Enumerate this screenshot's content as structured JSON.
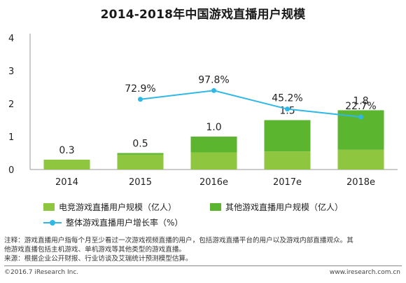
{
  "title": "2014-2018年中国游戏直播用户规模",
  "colors": {
    "esports_bar": "#8ec63f",
    "other_bar": "#5bb52e",
    "line": "#2fb8e6",
    "axis": "#999999"
  },
  "chart_data": {
    "type": "bar",
    "title": "2014-2018年中国游戏直播用户规模",
    "categories": [
      "2014",
      "2015",
      "2016e",
      "2017e",
      "2018e"
    ],
    "ylim": [
      0,
      4
    ],
    "yticks": [
      "0",
      "1",
      "2",
      "3",
      "4"
    ],
    "series": [
      {
        "name": "电竞游戏直播用户规模（亿人）",
        "kind": "bar-stack",
        "values": [
          0.3,
          0.45,
          0.52,
          0.55,
          0.6
        ]
      },
      {
        "name": "其他游戏直播用户规模（亿人）",
        "kind": "bar-stack",
        "values": [
          0.0,
          0.05,
          0.48,
          0.95,
          1.2
        ]
      },
      {
        "name": "整体游戏直播用户增长率（%）",
        "kind": "line",
        "values": [
          null,
          72.9,
          97.8,
          45.2,
          22.7
        ]
      }
    ],
    "total_labels": [
      "0.3",
      "0.5",
      "1.0",
      "1.5",
      "1.8"
    ],
    "line_labels": [
      "",
      "72.9%",
      "97.8%",
      "45.2%",
      "22.7%"
    ],
    "line_axis_range": [
      -127,
      248
    ],
    "grid": false,
    "legend_position": "bottom"
  },
  "legend": {
    "esports": "电竞游戏直播用户规模（亿人）",
    "other": "其他游戏直播用户规模（亿人）",
    "growth": "整体游戏直播用户增长率（%）"
  },
  "note_lines": [
    "注释：游戏直播用户指每个月至少看过一次游戏视频直播的用户，包括游戏直播平台的用户以及游戏内部直播观众。其",
    "他游戏直播包括主机游戏、单机游戏等其他类型的游戏直播。",
    "来源：根据企业公开财报、行业访谈及艾瑞统计预测模型估算。"
  ],
  "footer": {
    "copyright": "©2016.7 iResearch Inc.",
    "website": "www.iresearch.com.cn"
  }
}
